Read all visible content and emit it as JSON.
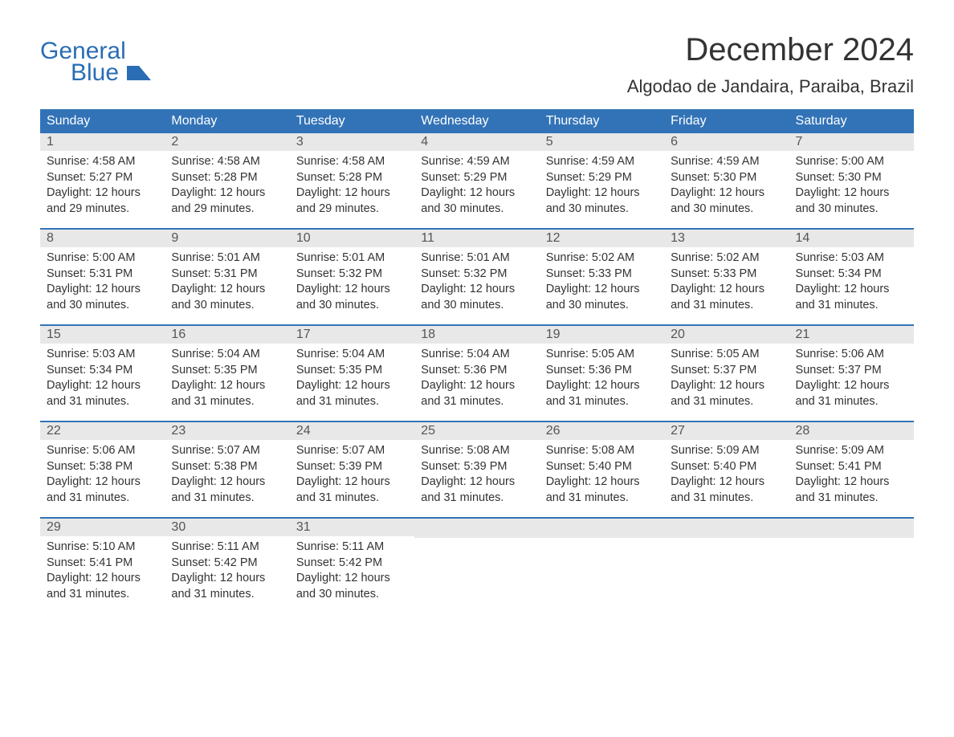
{
  "logo": {
    "line1": "General",
    "line2": "Blue",
    "color": "#2a6db5"
  },
  "title": "December 2024",
  "location": "Algodao de Jandaira, Paraiba, Brazil",
  "colors": {
    "header_bg": "#3273b7",
    "header_text": "#ffffff",
    "day_number_bg": "#e8e8e8",
    "body_text": "#333333",
    "week_border": "#3273b7"
  },
  "typography": {
    "title_fontsize": 40,
    "location_fontsize": 22,
    "header_fontsize": 16,
    "day_number_fontsize": 16,
    "content_fontsize": 14.5,
    "logo_fontsize": 30
  },
  "day_labels": [
    "Sunday",
    "Monday",
    "Tuesday",
    "Wednesday",
    "Thursday",
    "Friday",
    "Saturday"
  ],
  "weeks": [
    [
      {
        "num": "1",
        "sunrise": "Sunrise: 4:58 AM",
        "sunset": "Sunset: 5:27 PM",
        "daylight1": "Daylight: 12 hours",
        "daylight2": "and 29 minutes."
      },
      {
        "num": "2",
        "sunrise": "Sunrise: 4:58 AM",
        "sunset": "Sunset: 5:28 PM",
        "daylight1": "Daylight: 12 hours",
        "daylight2": "and 29 minutes."
      },
      {
        "num": "3",
        "sunrise": "Sunrise: 4:58 AM",
        "sunset": "Sunset: 5:28 PM",
        "daylight1": "Daylight: 12 hours",
        "daylight2": "and 29 minutes."
      },
      {
        "num": "4",
        "sunrise": "Sunrise: 4:59 AM",
        "sunset": "Sunset: 5:29 PM",
        "daylight1": "Daylight: 12 hours",
        "daylight2": "and 30 minutes."
      },
      {
        "num": "5",
        "sunrise": "Sunrise: 4:59 AM",
        "sunset": "Sunset: 5:29 PM",
        "daylight1": "Daylight: 12 hours",
        "daylight2": "and 30 minutes."
      },
      {
        "num": "6",
        "sunrise": "Sunrise: 4:59 AM",
        "sunset": "Sunset: 5:30 PM",
        "daylight1": "Daylight: 12 hours",
        "daylight2": "and 30 minutes."
      },
      {
        "num": "7",
        "sunrise": "Sunrise: 5:00 AM",
        "sunset": "Sunset: 5:30 PM",
        "daylight1": "Daylight: 12 hours",
        "daylight2": "and 30 minutes."
      }
    ],
    [
      {
        "num": "8",
        "sunrise": "Sunrise: 5:00 AM",
        "sunset": "Sunset: 5:31 PM",
        "daylight1": "Daylight: 12 hours",
        "daylight2": "and 30 minutes."
      },
      {
        "num": "9",
        "sunrise": "Sunrise: 5:01 AM",
        "sunset": "Sunset: 5:31 PM",
        "daylight1": "Daylight: 12 hours",
        "daylight2": "and 30 minutes."
      },
      {
        "num": "10",
        "sunrise": "Sunrise: 5:01 AM",
        "sunset": "Sunset: 5:32 PM",
        "daylight1": "Daylight: 12 hours",
        "daylight2": "and 30 minutes."
      },
      {
        "num": "11",
        "sunrise": "Sunrise: 5:01 AM",
        "sunset": "Sunset: 5:32 PM",
        "daylight1": "Daylight: 12 hours",
        "daylight2": "and 30 minutes."
      },
      {
        "num": "12",
        "sunrise": "Sunrise: 5:02 AM",
        "sunset": "Sunset: 5:33 PM",
        "daylight1": "Daylight: 12 hours",
        "daylight2": "and 30 minutes."
      },
      {
        "num": "13",
        "sunrise": "Sunrise: 5:02 AM",
        "sunset": "Sunset: 5:33 PM",
        "daylight1": "Daylight: 12 hours",
        "daylight2": "and 31 minutes."
      },
      {
        "num": "14",
        "sunrise": "Sunrise: 5:03 AM",
        "sunset": "Sunset: 5:34 PM",
        "daylight1": "Daylight: 12 hours",
        "daylight2": "and 31 minutes."
      }
    ],
    [
      {
        "num": "15",
        "sunrise": "Sunrise: 5:03 AM",
        "sunset": "Sunset: 5:34 PM",
        "daylight1": "Daylight: 12 hours",
        "daylight2": "and 31 minutes."
      },
      {
        "num": "16",
        "sunrise": "Sunrise: 5:04 AM",
        "sunset": "Sunset: 5:35 PM",
        "daylight1": "Daylight: 12 hours",
        "daylight2": "and 31 minutes."
      },
      {
        "num": "17",
        "sunrise": "Sunrise: 5:04 AM",
        "sunset": "Sunset: 5:35 PM",
        "daylight1": "Daylight: 12 hours",
        "daylight2": "and 31 minutes."
      },
      {
        "num": "18",
        "sunrise": "Sunrise: 5:04 AM",
        "sunset": "Sunset: 5:36 PM",
        "daylight1": "Daylight: 12 hours",
        "daylight2": "and 31 minutes."
      },
      {
        "num": "19",
        "sunrise": "Sunrise: 5:05 AM",
        "sunset": "Sunset: 5:36 PM",
        "daylight1": "Daylight: 12 hours",
        "daylight2": "and 31 minutes."
      },
      {
        "num": "20",
        "sunrise": "Sunrise: 5:05 AM",
        "sunset": "Sunset: 5:37 PM",
        "daylight1": "Daylight: 12 hours",
        "daylight2": "and 31 minutes."
      },
      {
        "num": "21",
        "sunrise": "Sunrise: 5:06 AM",
        "sunset": "Sunset: 5:37 PM",
        "daylight1": "Daylight: 12 hours",
        "daylight2": "and 31 minutes."
      }
    ],
    [
      {
        "num": "22",
        "sunrise": "Sunrise: 5:06 AM",
        "sunset": "Sunset: 5:38 PM",
        "daylight1": "Daylight: 12 hours",
        "daylight2": "and 31 minutes."
      },
      {
        "num": "23",
        "sunrise": "Sunrise: 5:07 AM",
        "sunset": "Sunset: 5:38 PM",
        "daylight1": "Daylight: 12 hours",
        "daylight2": "and 31 minutes."
      },
      {
        "num": "24",
        "sunrise": "Sunrise: 5:07 AM",
        "sunset": "Sunset: 5:39 PM",
        "daylight1": "Daylight: 12 hours",
        "daylight2": "and 31 minutes."
      },
      {
        "num": "25",
        "sunrise": "Sunrise: 5:08 AM",
        "sunset": "Sunset: 5:39 PM",
        "daylight1": "Daylight: 12 hours",
        "daylight2": "and 31 minutes."
      },
      {
        "num": "26",
        "sunrise": "Sunrise: 5:08 AM",
        "sunset": "Sunset: 5:40 PM",
        "daylight1": "Daylight: 12 hours",
        "daylight2": "and 31 minutes."
      },
      {
        "num": "27",
        "sunrise": "Sunrise: 5:09 AM",
        "sunset": "Sunset: 5:40 PM",
        "daylight1": "Daylight: 12 hours",
        "daylight2": "and 31 minutes."
      },
      {
        "num": "28",
        "sunrise": "Sunrise: 5:09 AM",
        "sunset": "Sunset: 5:41 PM",
        "daylight1": "Daylight: 12 hours",
        "daylight2": "and 31 minutes."
      }
    ],
    [
      {
        "num": "29",
        "sunrise": "Sunrise: 5:10 AM",
        "sunset": "Sunset: 5:41 PM",
        "daylight1": "Daylight: 12 hours",
        "daylight2": "and 31 minutes."
      },
      {
        "num": "30",
        "sunrise": "Sunrise: 5:11 AM",
        "sunset": "Sunset: 5:42 PM",
        "daylight1": "Daylight: 12 hours",
        "daylight2": "and 31 minutes."
      },
      {
        "num": "31",
        "sunrise": "Sunrise: 5:11 AM",
        "sunset": "Sunset: 5:42 PM",
        "daylight1": "Daylight: 12 hours",
        "daylight2": "and 30 minutes."
      },
      {
        "empty": true
      },
      {
        "empty": true
      },
      {
        "empty": true
      },
      {
        "empty": true
      }
    ]
  ]
}
